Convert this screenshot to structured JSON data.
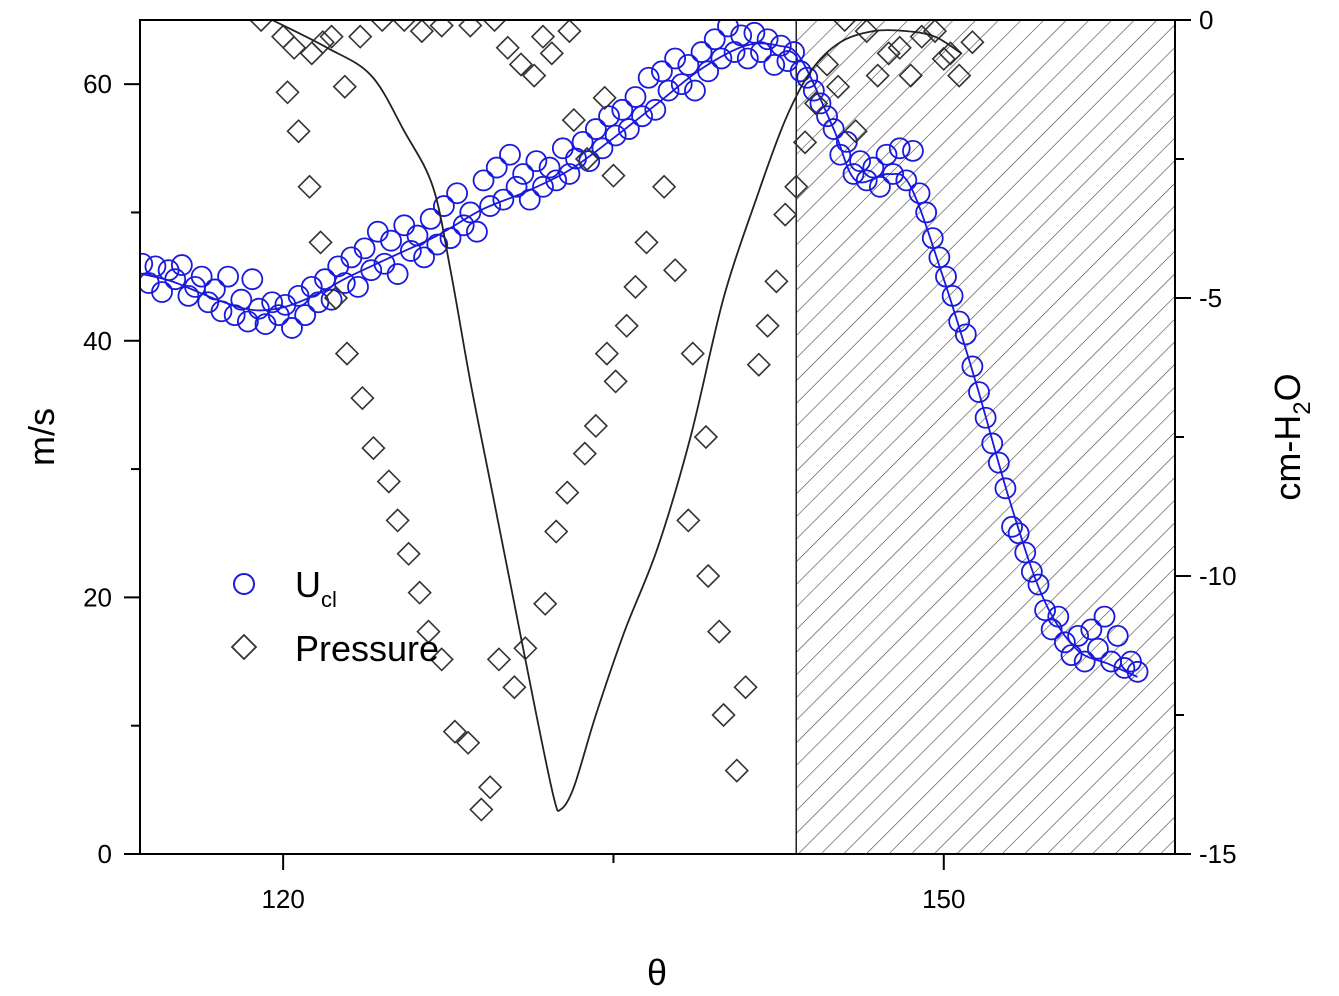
{
  "chart_data": {
    "type": "scatter",
    "xlabel": "θ",
    "ylabel_left": "m/s",
    "ylabel_right_prefix": "cm-H",
    "ylabel_right_sub": "2",
    "ylabel_right_suffix": "O",
    "xlim": [
      113.5,
      160.5
    ],
    "ylim_left": [
      0,
      65
    ],
    "ylim_right": [
      -15,
      0
    ],
    "x_ticks": [
      120,
      150
    ],
    "x_tick_labels": [
      "120",
      "150"
    ],
    "x_minor_ticks": [
      135
    ],
    "y_left_ticks": [
      0,
      20,
      40,
      60
    ],
    "y_left_tick_labels": [
      "0",
      "20",
      "40",
      "60"
    ],
    "y_left_minor_ticks": [
      10,
      30,
      50
    ],
    "y_right_ticks": [
      -15,
      -10,
      -5,
      0
    ],
    "y_right_tick_labels": [
      "-15",
      "-10",
      "-5",
      "0"
    ],
    "y_right_minor_ticks": [
      -12.5,
      -7.5,
      -2.5
    ],
    "shaded_region": {
      "x_start": 143.3,
      "x_end": 160.5,
      "pattern": "diagonal-hatch"
    },
    "legend": {
      "placement": "lower-left",
      "entries": [
        {
          "label_main": "U",
          "label_sub": "cl",
          "marker": "circle",
          "color": "#1a1adc"
        },
        {
          "label_main": "Pressure",
          "label_sub": "",
          "marker": "diamond",
          "color": "#333333"
        }
      ]
    },
    "series": [
      {
        "id": "ucl",
        "axis": "left",
        "marker": "circle",
        "color": "#1a1adc",
        "points": [
          [
            113.6,
            46.0
          ],
          [
            113.9,
            44.5
          ],
          [
            114.2,
            45.8
          ],
          [
            114.5,
            43.8
          ],
          [
            114.8,
            45.5
          ],
          [
            115.1,
            44.8
          ],
          [
            115.4,
            45.9
          ],
          [
            115.7,
            43.5
          ],
          [
            116.0,
            44.2
          ],
          [
            116.3,
            45.0
          ],
          [
            116.6,
            43.0
          ],
          [
            116.9,
            44.0
          ],
          [
            117.2,
            42.3
          ],
          [
            117.5,
            45.0
          ],
          [
            117.8,
            42.0
          ],
          [
            118.1,
            43.2
          ],
          [
            118.4,
            41.5
          ],
          [
            118.6,
            44.8
          ],
          [
            118.9,
            42.5
          ],
          [
            119.2,
            41.3
          ],
          [
            119.5,
            43.0
          ],
          [
            119.8,
            42.0
          ],
          [
            120.1,
            42.8
          ],
          [
            120.4,
            41.0
          ],
          [
            120.7,
            43.5
          ],
          [
            121.0,
            42.0
          ],
          [
            121.3,
            44.2
          ],
          [
            121.6,
            43.0
          ],
          [
            121.9,
            44.8
          ],
          [
            122.2,
            43.2
          ],
          [
            122.5,
            45.8
          ],
          [
            122.8,
            44.5
          ],
          [
            123.1,
            46.5
          ],
          [
            123.4,
            44.2
          ],
          [
            123.7,
            47.2
          ],
          [
            124.0,
            45.5
          ],
          [
            124.3,
            48.5
          ],
          [
            124.6,
            46.0
          ],
          [
            124.9,
            47.8
          ],
          [
            125.2,
            45.2
          ],
          [
            125.5,
            49.0
          ],
          [
            125.8,
            47.0
          ],
          [
            126.1,
            48.2
          ],
          [
            126.4,
            46.5
          ],
          [
            126.7,
            49.5
          ],
          [
            127.0,
            47.5
          ],
          [
            127.3,
            50.5
          ],
          [
            127.6,
            48.0
          ],
          [
            127.9,
            51.5
          ],
          [
            128.2,
            49.0
          ],
          [
            128.5,
            50.0
          ],
          [
            128.8,
            48.5
          ],
          [
            129.1,
            52.5
          ],
          [
            129.4,
            50.5
          ],
          [
            129.7,
            53.5
          ],
          [
            130.0,
            51.0
          ],
          [
            130.3,
            54.5
          ],
          [
            130.6,
            52.0
          ],
          [
            130.9,
            53.0
          ],
          [
            131.2,
            51.0
          ],
          [
            131.5,
            54.0
          ],
          [
            131.8,
            52.0
          ],
          [
            132.1,
            53.5
          ],
          [
            132.4,
            52.5
          ],
          [
            132.7,
            55.0
          ],
          [
            133.0,
            53.0
          ],
          [
            133.3,
            54.2
          ],
          [
            133.6,
            55.5
          ],
          [
            133.9,
            54.0
          ],
          [
            134.2,
            56.5
          ],
          [
            134.5,
            55.0
          ],
          [
            134.8,
            57.5
          ],
          [
            135.1,
            56.0
          ],
          [
            135.4,
            58.0
          ],
          [
            135.7,
            56.5
          ],
          [
            136.0,
            59.0
          ],
          [
            136.3,
            57.5
          ],
          [
            136.6,
            60.5
          ],
          [
            136.9,
            58.0
          ],
          [
            137.2,
            61.0
          ],
          [
            137.5,
            59.5
          ],
          [
            137.8,
            62.0
          ],
          [
            138.1,
            60.0
          ],
          [
            138.4,
            61.5
          ],
          [
            138.7,
            59.5
          ],
          [
            139.0,
            62.5
          ],
          [
            139.3,
            61.0
          ],
          [
            139.6,
            63.5
          ],
          [
            139.9,
            62.0
          ],
          [
            140.2,
            64.5
          ],
          [
            140.5,
            62.5
          ],
          [
            140.8,
            63.8
          ],
          [
            141.1,
            62.0
          ],
          [
            141.4,
            64.0
          ],
          [
            141.7,
            62.5
          ],
          [
            142.0,
            63.5
          ],
          [
            142.3,
            61.5
          ],
          [
            142.6,
            63.0
          ],
          [
            142.9,
            61.8
          ],
          [
            143.2,
            62.5
          ],
          [
            143.5,
            61.0
          ],
          [
            143.8,
            60.5
          ],
          [
            144.1,
            59.5
          ],
          [
            144.4,
            58.5
          ],
          [
            144.7,
            57.5
          ],
          [
            145.0,
            56.5
          ],
          [
            145.3,
            54.5
          ],
          [
            145.6,
            55.5
          ],
          [
            145.9,
            53.0
          ],
          [
            146.2,
            54.0
          ],
          [
            146.5,
            52.5
          ],
          [
            146.8,
            53.5
          ],
          [
            147.1,
            52.0
          ],
          [
            147.4,
            54.5
          ],
          [
            147.7,
            53.0
          ],
          [
            148.0,
            55.0
          ],
          [
            148.3,
            52.5
          ],
          [
            148.6,
            54.8
          ],
          [
            148.9,
            51.5
          ],
          [
            149.2,
            50.0
          ],
          [
            149.5,
            48.0
          ],
          [
            149.8,
            46.5
          ],
          [
            150.1,
            45.0
          ],
          [
            150.4,
            43.5
          ],
          [
            150.7,
            41.5
          ],
          [
            151.0,
            40.5
          ],
          [
            151.3,
            38.0
          ],
          [
            151.6,
            36.0
          ],
          [
            151.9,
            34.0
          ],
          [
            152.2,
            32.0
          ],
          [
            152.5,
            30.5
          ],
          [
            152.8,
            28.5
          ],
          [
            153.1,
            25.5
          ],
          [
            153.4,
            25.0
          ],
          [
            153.7,
            23.5
          ],
          [
            154.0,
            22.0
          ],
          [
            154.3,
            21.0
          ],
          [
            154.6,
            19.0
          ],
          [
            154.9,
            17.5
          ],
          [
            155.2,
            18.5
          ],
          [
            155.5,
            16.5
          ],
          [
            155.8,
            15.5
          ],
          [
            156.1,
            17.0
          ],
          [
            156.4,
            15.0
          ],
          [
            156.7,
            17.5
          ],
          [
            157.0,
            16.0
          ],
          [
            157.3,
            18.5
          ],
          [
            157.6,
            15.0
          ],
          [
            157.9,
            17.0
          ],
          [
            158.2,
            14.5
          ],
          [
            158.5,
            15.0
          ],
          [
            158.8,
            14.2
          ]
        ],
        "curve": [
          [
            113.6,
            45.2
          ],
          [
            115,
            44.6
          ],
          [
            117,
            43.2
          ],
          [
            118.6,
            42.4
          ],
          [
            120,
            42.6
          ],
          [
            121.5,
            43.6
          ],
          [
            123,
            45.0
          ],
          [
            125,
            46.6
          ],
          [
            127,
            48.2
          ],
          [
            129,
            50.2
          ],
          [
            131,
            51.6
          ],
          [
            133,
            53.3
          ],
          [
            135,
            55.8
          ],
          [
            137,
            58.5
          ],
          [
            139,
            61.2
          ],
          [
            141,
            63.0
          ],
          [
            142.5,
            63.0
          ],
          [
            143.5,
            62.0
          ],
          [
            145,
            56.5
          ],
          [
            146,
            52.5
          ],
          [
            147.5,
            53.0
          ],
          [
            148.5,
            52.0
          ],
          [
            150,
            44.8
          ],
          [
            151.5,
            36.5
          ],
          [
            153,
            27.5
          ],
          [
            154.5,
            20.0
          ],
          [
            156,
            16.0
          ],
          [
            157.5,
            14.8
          ],
          [
            158.8,
            13.8
          ]
        ]
      },
      {
        "id": "pressure",
        "axis": "right",
        "marker": "diamond",
        "color": "#333333",
        "points": [
          [
            119.0,
            0.0
          ],
          [
            120.0,
            -0.3
          ],
          [
            120.5,
            -0.5
          ],
          [
            121.3,
            -0.6
          ],
          [
            121.8,
            -0.4
          ],
          [
            122.2,
            -0.3
          ],
          [
            122.8,
            -1.2
          ],
          [
            123.5,
            -0.3
          ],
          [
            124.5,
            0.0
          ],
          [
            125.5,
            0.0
          ],
          [
            126.3,
            -0.2
          ],
          [
            127.2,
            -0.1
          ],
          [
            128.5,
            -0.1
          ],
          [
            129.6,
            0.0
          ],
          [
            130.2,
            -0.5
          ],
          [
            130.8,
            -0.8
          ],
          [
            131.4,
            -1.0
          ],
          [
            131.8,
            -0.3
          ],
          [
            132.2,
            -0.6
          ],
          [
            133.0,
            -0.2
          ],
          [
            133.8,
            -2.5
          ],
          [
            135.0,
            -2.8
          ],
          [
            133.2,
            -1.8
          ],
          [
            134.6,
            -1.4
          ],
          [
            137.3,
            -3.0
          ],
          [
            137.8,
            -4.5
          ],
          [
            138.6,
            -6.0
          ],
          [
            139.2,
            -7.5
          ],
          [
            138.4,
            -9.0
          ],
          [
            139.8,
            -11.0
          ],
          [
            139.3,
            -10.0
          ],
          [
            140.6,
            -13.5
          ],
          [
            141.0,
            -12.0
          ],
          [
            140.0,
            -12.5
          ],
          [
            136.5,
            -4.0
          ],
          [
            136.0,
            -4.8
          ],
          [
            135.6,
            -5.5
          ],
          [
            135.1,
            -6.5
          ],
          [
            134.7,
            -6.0
          ],
          [
            134.2,
            -7.3
          ],
          [
            133.7,
            -7.8
          ],
          [
            132.9,
            -8.5
          ],
          [
            132.4,
            -9.2
          ],
          [
            131.9,
            -10.5
          ],
          [
            131.0,
            -11.3
          ],
          [
            130.5,
            -12.0
          ],
          [
            129.8,
            -11.5
          ],
          [
            129.4,
            -13.8
          ],
          [
            129.0,
            -14.2
          ],
          [
            128.4,
            -13.0
          ],
          [
            127.8,
            -12.8
          ],
          [
            127.2,
            -11.5
          ],
          [
            126.6,
            -11.0
          ],
          [
            126.2,
            -10.3
          ],
          [
            125.7,
            -9.6
          ],
          [
            125.2,
            -9.0
          ],
          [
            124.8,
            -8.3
          ],
          [
            124.1,
            -7.7
          ],
          [
            123.6,
            -6.8
          ],
          [
            122.9,
            -6.0
          ],
          [
            122.4,
            -5.0
          ],
          [
            121.7,
            -4.0
          ],
          [
            121.2,
            -3.0
          ],
          [
            120.7,
            -2.0
          ],
          [
            120.2,
            -1.3
          ],
          [
            141.6,
            -6.2
          ],
          [
            142.0,
            -5.5
          ],
          [
            142.4,
            -4.7
          ],
          [
            142.8,
            -3.5
          ],
          [
            143.3,
            -3.0
          ],
          [
            143.7,
            -2.2
          ],
          [
            144.2,
            -1.5
          ],
          [
            144.7,
            -0.8
          ],
          [
            145.2,
            -1.2
          ],
          [
            146.0,
            -2.0
          ],
          [
            147.0,
            -1.0
          ],
          [
            148.0,
            -0.5
          ],
          [
            149.0,
            -0.3
          ],
          [
            150.0,
            -0.7
          ],
          [
            150.7,
            -1.0
          ],
          [
            151.3,
            -0.4
          ],
          [
            145.5,
            0.0
          ],
          [
            146.5,
            -0.2
          ],
          [
            147.5,
            -0.6
          ],
          [
            148.5,
            -1.0
          ],
          [
            149.6,
            -0.2
          ],
          [
            150.3,
            -0.6
          ]
        ],
        "curve": [
          [
            119.5,
            0.0
          ],
          [
            122,
            -0.5
          ],
          [
            124,
            -1.0
          ],
          [
            125.5,
            -2.0
          ],
          [
            126.8,
            -3.0
          ],
          [
            127.6,
            -4.5
          ],
          [
            128.5,
            -6.5
          ],
          [
            129.5,
            -8.5
          ],
          [
            130.5,
            -10.5
          ],
          [
            131.5,
            -12.5
          ],
          [
            132.3,
            -14.0
          ],
          [
            132.6,
            -14.2
          ],
          [
            133.2,
            -13.8
          ],
          [
            134.2,
            -12.5
          ],
          [
            135.5,
            -11.0
          ],
          [
            137.0,
            -9.5
          ],
          [
            138.5,
            -7.5
          ],
          [
            140.0,
            -5.0
          ],
          [
            141.5,
            -3.2
          ],
          [
            142.8,
            -1.8
          ],
          [
            144.0,
            -0.9
          ],
          [
            145.3,
            -0.4
          ],
          [
            146.8,
            -0.2
          ],
          [
            148.3,
            -0.2
          ],
          [
            149.6,
            -0.3
          ],
          [
            150.8,
            -0.6
          ]
        ]
      }
    ]
  }
}
